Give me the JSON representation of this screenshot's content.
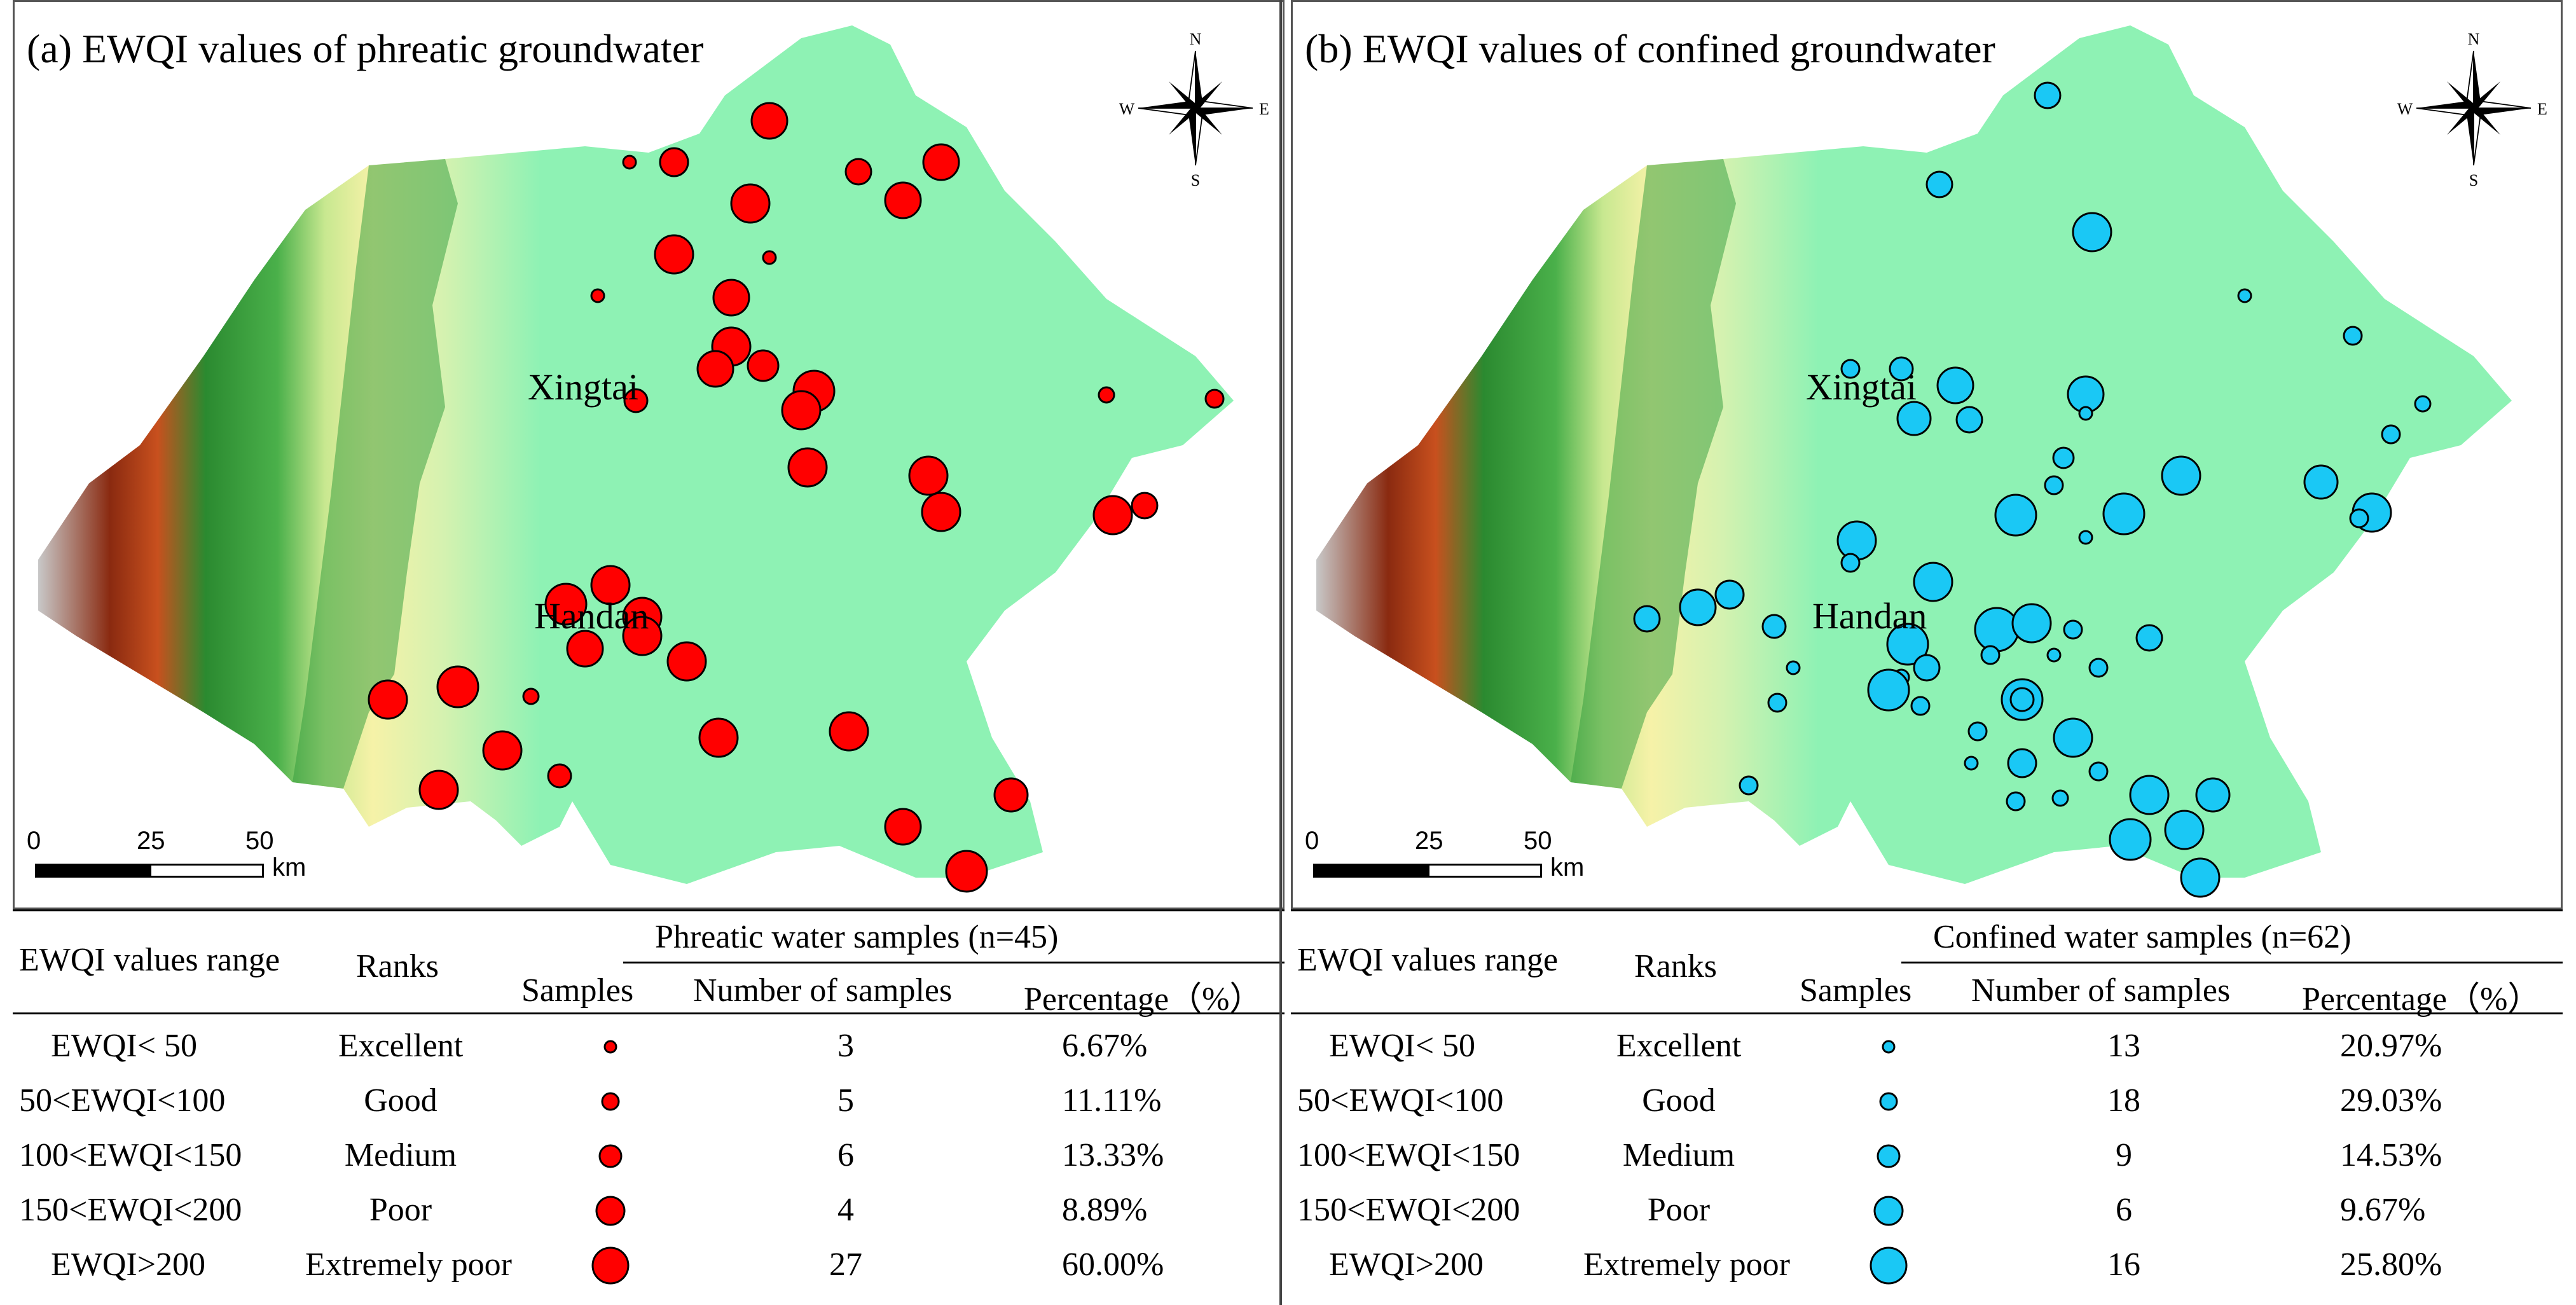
{
  "colors": {
    "phreatic_fill": "#ff0000",
    "confined_fill": "#1ac8f5",
    "mountain_dark": "#a23a18",
    "mountain_green": "#2e9a3a",
    "plain_yellow": "#f5f0a0",
    "plain_green": "#8ef2b4"
  },
  "panel_a": {
    "title": "(a) EWQI values of phreatic groundwater",
    "cities": [
      "Xingtai",
      "Handan"
    ],
    "scale": {
      "ticks": [
        "0",
        "25",
        "50"
      ],
      "unit": "km"
    },
    "table": {
      "col_range": "EWQI values range",
      "col_ranks": "Ranks",
      "group_header": "Phreatic water samples (n=45)",
      "col_samples": "Samples",
      "col_number": "Number of samples",
      "col_percent": "Percentage（%）",
      "rows": [
        {
          "range": "EWQI< 50",
          "rank": "Excellent",
          "number": "3",
          "percent": "6.67%"
        },
        {
          "range": "50<EWQI<100",
          "rank": "Good",
          "number": "5",
          "percent": "11.11%"
        },
        {
          "range": "100<EWQI<150",
          "rank": "Medium",
          "number": "6",
          "percent": "13.33%"
        },
        {
          "range": "150<EWQI<200",
          "rank": "Poor",
          "number": "4",
          "percent": "8.89%"
        },
        {
          "range": "EWQI>200",
          "rank": "Extremely poor",
          "number": "27",
          "percent": "60.00%"
        }
      ]
    }
  },
  "panel_b": {
    "title": "(b) EWQI values of confined groundwater",
    "cities": [
      "Xingtai",
      "Handan"
    ],
    "scale": {
      "ticks": [
        "0",
        "25",
        "50"
      ],
      "unit": "km"
    },
    "table": {
      "col_range": "EWQI values range",
      "col_ranks": "Ranks",
      "group_header": "Confined water samples (n=62)",
      "col_samples": "Samples",
      "col_number": "Number of samples",
      "col_percent": "Percentage（%）",
      "rows": [
        {
          "range": "EWQI< 50",
          "rank": "Excellent",
          "number": "13",
          "percent": "20.97%"
        },
        {
          "range": "50<EWQI<100",
          "rank": "Good",
          "number": "18",
          "percent": "29.03%"
        },
        {
          "range": "100<EWQI<150",
          "rank": "Medium",
          "number": "9",
          "percent": "14.53%"
        },
        {
          "range": "150<EWQI<200",
          "rank": "Poor",
          "number": "6",
          "percent": "9.67%"
        },
        {
          "range": "EWQI>200",
          "rank": "Extremely poor",
          "number": "16",
          "percent": "25.80%"
        }
      ]
    }
  },
  "compass": {
    "n": "N",
    "s": "S",
    "e": "E",
    "w": "W"
  }
}
